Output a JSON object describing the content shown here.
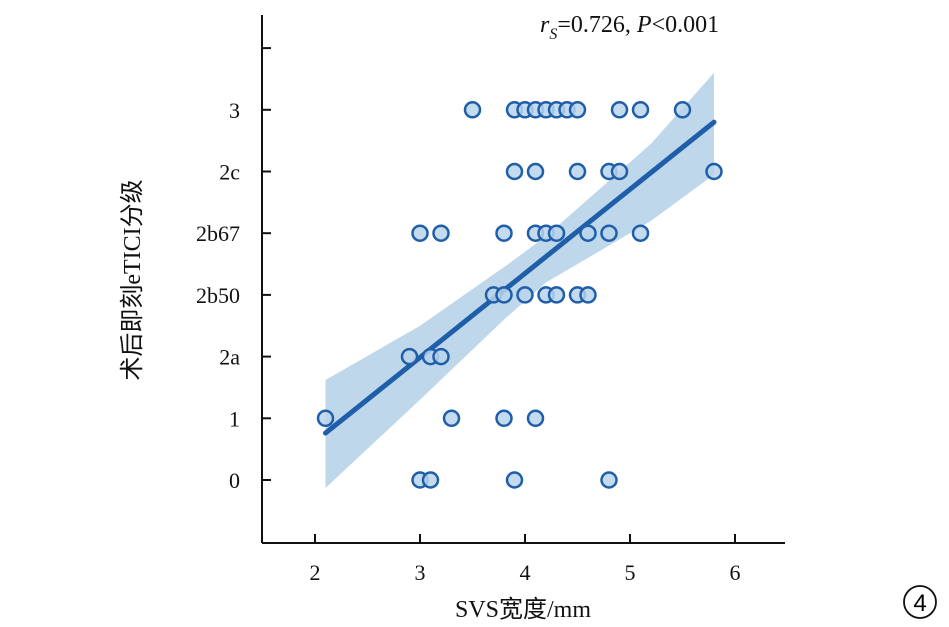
{
  "chart_data": {
    "type": "scatter",
    "title": "",
    "annotation": {
      "stat_label": "r",
      "stat_sub": "S",
      "stat_value": "=0.726, ",
      "p_label": "P",
      "p_value": "<0.001"
    },
    "xlabel": "SVS宽度/mm",
    "ylabel": "术后即刻eTICI分级",
    "xlim": [
      1.5,
      6.5
    ],
    "xticks": [
      2,
      3,
      4,
      5,
      6
    ],
    "y_categories": [
      "0",
      "1",
      "2a",
      "2b50",
      "2b67",
      "2c",
      "3"
    ],
    "grid": false,
    "panel_label": "4",
    "points": [
      {
        "x": 3.5,
        "y": "3"
      },
      {
        "x": 3.9,
        "y": "3"
      },
      {
        "x": 4.0,
        "y": "3"
      },
      {
        "x": 4.1,
        "y": "3"
      },
      {
        "x": 4.2,
        "y": "3"
      },
      {
        "x": 4.3,
        "y": "3"
      },
      {
        "x": 4.4,
        "y": "3"
      },
      {
        "x": 4.5,
        "y": "3"
      },
      {
        "x": 4.9,
        "y": "3"
      },
      {
        "x": 5.1,
        "y": "3"
      },
      {
        "x": 5.5,
        "y": "3"
      },
      {
        "x": 3.9,
        "y": "2c"
      },
      {
        "x": 4.1,
        "y": "2c"
      },
      {
        "x": 4.5,
        "y": "2c"
      },
      {
        "x": 4.8,
        "y": "2c"
      },
      {
        "x": 4.9,
        "y": "2c"
      },
      {
        "x": 5.8,
        "y": "2c"
      },
      {
        "x": 3.0,
        "y": "2b67"
      },
      {
        "x": 3.2,
        "y": "2b67"
      },
      {
        "x": 3.8,
        "y": "2b67"
      },
      {
        "x": 4.1,
        "y": "2b67"
      },
      {
        "x": 4.2,
        "y": "2b67"
      },
      {
        "x": 4.3,
        "y": "2b67"
      },
      {
        "x": 4.6,
        "y": "2b67"
      },
      {
        "x": 4.8,
        "y": "2b67"
      },
      {
        "x": 5.1,
        "y": "2b67"
      },
      {
        "x": 3.7,
        "y": "2b50"
      },
      {
        "x": 3.8,
        "y": "2b50"
      },
      {
        "x": 4.0,
        "y": "2b50"
      },
      {
        "x": 4.2,
        "y": "2b50"
      },
      {
        "x": 4.3,
        "y": "2b50"
      },
      {
        "x": 4.5,
        "y": "2b50"
      },
      {
        "x": 4.6,
        "y": "2b50"
      },
      {
        "x": 2.9,
        "y": "2a"
      },
      {
        "x": 3.1,
        "y": "2a"
      },
      {
        "x": 3.2,
        "y": "2a"
      },
      {
        "x": 2.1,
        "y": "1"
      },
      {
        "x": 3.3,
        "y": "1"
      },
      {
        "x": 3.8,
        "y": "1"
      },
      {
        "x": 4.1,
        "y": "1"
      },
      {
        "x": 3.0,
        "y": "0"
      },
      {
        "x": 3.1,
        "y": "0"
      },
      {
        "x": 3.9,
        "y": "0"
      },
      {
        "x": 4.8,
        "y": "0"
      }
    ],
    "fit": {
      "x": [
        2.1,
        5.8
      ],
      "y_index": [
        0.76,
        5.8
      ]
    },
    "ci_band": {
      "x": [
        2.1,
        3.0,
        3.8,
        4.2,
        4.6,
        5.2,
        5.8
      ],
      "upper": [
        1.62,
        2.5,
        3.45,
        3.95,
        4.55,
        5.45,
        6.6
      ],
      "lower": [
        -0.13,
        1.3,
        2.6,
        3.2,
        3.6,
        4.2,
        4.95
      ]
    },
    "colors": {
      "point_fill": "#b9d3ec",
      "point_edge": "#1f5ea8",
      "line": "#1f5ea8",
      "band": "#bcd5ea"
    }
  }
}
